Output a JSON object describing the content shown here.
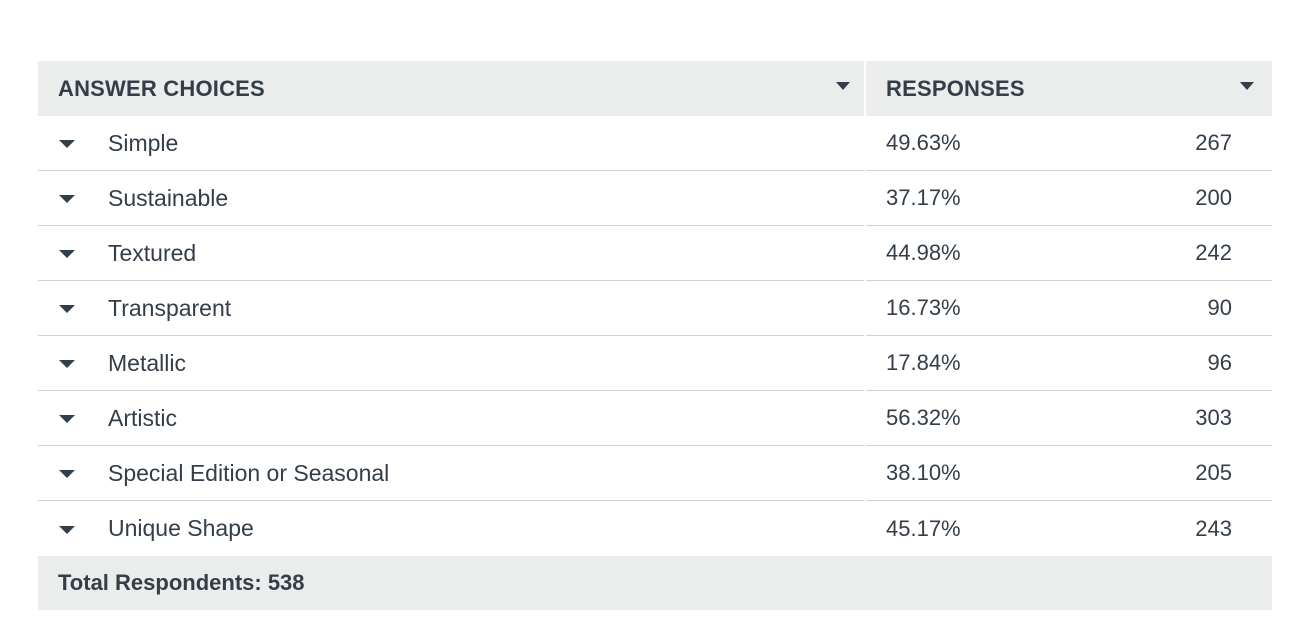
{
  "table": {
    "header": {
      "choices_label": "ANSWER CHOICES",
      "responses_label": "RESPONSES"
    },
    "rows": [
      {
        "choice": "Simple",
        "percent": "49.63%",
        "count": "267"
      },
      {
        "choice": "Sustainable",
        "percent": "37.17%",
        "count": "200"
      },
      {
        "choice": "Textured",
        "percent": "44.98%",
        "count": "242"
      },
      {
        "choice": "Transparent",
        "percent": "16.73%",
        "count": "90"
      },
      {
        "choice": "Metallic",
        "percent": "17.84%",
        "count": "96"
      },
      {
        "choice": "Artistic",
        "percent": "56.32%",
        "count": "303"
      },
      {
        "choice": "Special Edition or Seasonal",
        "percent": "38.10%",
        "count": "205"
      },
      {
        "choice": "Unique Shape",
        "percent": "45.17%",
        "count": "243"
      }
    ],
    "footer": {
      "total_label": "Total Respondents: 538"
    }
  },
  "colors": {
    "header_bg": "#ebecec",
    "text": "#333e48",
    "divider": "#d0d2d3"
  },
  "icons": {
    "header_sort": "caret-down-icon",
    "row_expand": "caret-down-icon"
  }
}
